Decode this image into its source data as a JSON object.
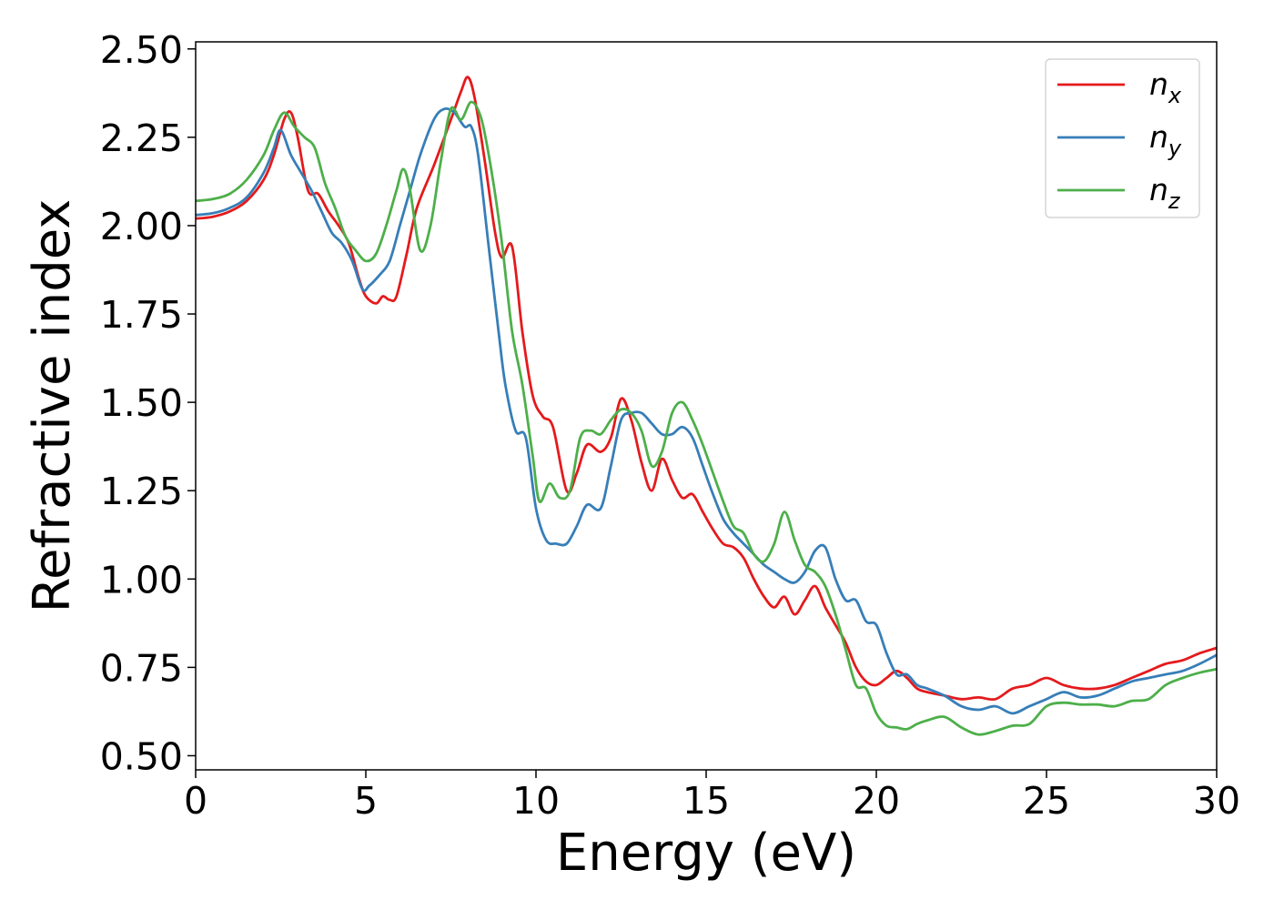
{
  "chart_data": {
    "type": "line",
    "title": "",
    "xlabel": "Energy (eV)",
    "ylabel": "Refractive index",
    "xlim": [
      0,
      30
    ],
    "ylim": [
      0.46,
      2.52
    ],
    "xticks": [
      0,
      5,
      10,
      15,
      20,
      25,
      30
    ],
    "xtick_labels": [
      "0",
      "5",
      "10",
      "15",
      "20",
      "25",
      "30"
    ],
    "yticks": [
      0.5,
      0.75,
      1.0,
      1.25,
      1.5,
      1.75,
      2.0,
      2.25,
      2.5
    ],
    "ytick_labels": [
      "0.50",
      "0.75",
      "1.00",
      "1.25",
      "1.50",
      "1.75",
      "2.00",
      "2.25",
      "2.50"
    ],
    "grid": false,
    "legend_position": "top-right",
    "series": [
      {
        "name": "n",
        "subscript": "x",
        "color": "#e41a1c",
        "x": [
          0,
          0.5,
          1,
          1.5,
          2,
          2.3,
          2.6,
          2.8,
          3,
          3.3,
          3.6,
          3.9,
          4.2,
          4.5,
          4.8,
          5.0,
          5.3,
          5.5,
          5.7,
          5.9,
          6.2,
          6.5,
          7.0,
          7.5,
          7.8,
          8.0,
          8.2,
          8.5,
          8.8,
          9.0,
          9.3,
          9.6,
          9.9,
          10.2,
          10.5,
          10.9,
          11.2,
          11.5,
          11.9,
          12.2,
          12.5,
          12.8,
          13.1,
          13.4,
          13.7,
          14.0,
          14.3,
          14.6,
          14.9,
          15.2,
          15.5,
          15.8,
          16.1,
          16.4,
          16.7,
          17.0,
          17.3,
          17.6,
          17.9,
          18.2,
          18.5,
          18.8,
          19.1,
          19.4,
          19.7,
          20.0,
          20.3,
          20.6,
          20.9,
          21.2,
          21.5,
          22.0,
          22.5,
          23.0,
          23.5,
          24.0,
          24.5,
          25.0,
          25.5,
          26.0,
          26.5,
          27.0,
          27.5,
          28.0,
          28.5,
          29.0,
          29.5,
          30.0
        ],
        "y": [
          2.02,
          2.025,
          2.04,
          2.07,
          2.13,
          2.2,
          2.3,
          2.32,
          2.25,
          2.1,
          2.09,
          2.04,
          2.0,
          1.95,
          1.85,
          1.8,
          1.78,
          1.8,
          1.79,
          1.8,
          1.92,
          2.05,
          2.17,
          2.3,
          2.38,
          2.42,
          2.36,
          2.18,
          1.98,
          1.91,
          1.94,
          1.7,
          1.52,
          1.46,
          1.43,
          1.25,
          1.3,
          1.38,
          1.36,
          1.4,
          1.51,
          1.45,
          1.33,
          1.25,
          1.34,
          1.28,
          1.23,
          1.24,
          1.19,
          1.14,
          1.1,
          1.09,
          1.06,
          1.0,
          0.95,
          0.92,
          0.95,
          0.9,
          0.94,
          0.98,
          0.92,
          0.87,
          0.82,
          0.75,
          0.71,
          0.7,
          0.72,
          0.74,
          0.72,
          0.69,
          0.68,
          0.67,
          0.66,
          0.665,
          0.66,
          0.69,
          0.7,
          0.72,
          0.7,
          0.69,
          0.69,
          0.7,
          0.72,
          0.74,
          0.76,
          0.77,
          0.79,
          0.805
        ]
      },
      {
        "name": "n",
        "subscript": "y",
        "color": "#377eb8",
        "x": [
          0,
          0.5,
          1,
          1.5,
          2,
          2.3,
          2.5,
          2.8,
          3.1,
          3.4,
          3.7,
          4.0,
          4.3,
          4.6,
          4.9,
          5.1,
          5.4,
          5.7,
          6.0,
          6.3,
          6.6,
          7.0,
          7.3,
          7.6,
          7.9,
          8.1,
          8.3,
          8.6,
          8.9,
          9.1,
          9.4,
          9.7,
          10.0,
          10.3,
          10.6,
          10.9,
          11.2,
          11.5,
          11.9,
          12.2,
          12.5,
          12.8,
          13.1,
          13.4,
          13.7,
          14.0,
          14.3,
          14.6,
          14.9,
          15.2,
          15.5,
          15.8,
          16.1,
          16.4,
          16.7,
          17.0,
          17.3,
          17.6,
          17.9,
          18.2,
          18.5,
          18.8,
          19.1,
          19.4,
          19.7,
          20.0,
          20.3,
          20.6,
          20.9,
          21.2,
          21.5,
          22.0,
          22.5,
          23.0,
          23.5,
          24.0,
          24.5,
          25.0,
          25.5,
          26.0,
          26.5,
          27.0,
          27.5,
          28.0,
          28.5,
          29.0,
          29.5,
          30.0
        ],
        "y": [
          2.03,
          2.035,
          2.05,
          2.08,
          2.15,
          2.22,
          2.27,
          2.2,
          2.15,
          2.1,
          2.04,
          1.98,
          1.95,
          1.9,
          1.82,
          1.83,
          1.86,
          1.9,
          2.0,
          2.1,
          2.2,
          2.3,
          2.33,
          2.32,
          2.28,
          2.28,
          2.2,
          1.95,
          1.7,
          1.55,
          1.42,
          1.4,
          1.2,
          1.11,
          1.1,
          1.1,
          1.15,
          1.21,
          1.2,
          1.32,
          1.45,
          1.47,
          1.47,
          1.44,
          1.41,
          1.41,
          1.43,
          1.4,
          1.32,
          1.24,
          1.17,
          1.13,
          1.1,
          1.07,
          1.04,
          1.02,
          1.0,
          0.99,
          1.02,
          1.08,
          1.09,
          1.0,
          0.94,
          0.94,
          0.88,
          0.87,
          0.79,
          0.73,
          0.73,
          0.7,
          0.69,
          0.67,
          0.64,
          0.63,
          0.64,
          0.62,
          0.64,
          0.66,
          0.68,
          0.665,
          0.67,
          0.69,
          0.71,
          0.72,
          0.73,
          0.74,
          0.76,
          0.785
        ]
      },
      {
        "name": "n",
        "subscript": "z",
        "color": "#4daf4a",
        "x": [
          0,
          0.5,
          1,
          1.5,
          2,
          2.3,
          2.6,
          2.9,
          3.2,
          3.5,
          3.8,
          4.1,
          4.4,
          4.7,
          5.0,
          5.3,
          5.6,
          5.9,
          6.1,
          6.3,
          6.6,
          6.9,
          7.2,
          7.5,
          7.8,
          8.1,
          8.4,
          8.7,
          9.0,
          9.3,
          9.6,
          9.9,
          10.1,
          10.4,
          10.7,
          11.0,
          11.3,
          11.6,
          11.9,
          12.2,
          12.5,
          12.8,
          13.1,
          13.4,
          13.7,
          14.0,
          14.3,
          14.6,
          14.9,
          15.2,
          15.5,
          15.8,
          16.1,
          16.4,
          16.7,
          17.0,
          17.3,
          17.6,
          17.9,
          18.2,
          18.5,
          18.8,
          19.1,
          19.4,
          19.7,
          20.0,
          20.3,
          20.6,
          20.9,
          21.2,
          21.5,
          22.0,
          22.5,
          23.0,
          23.5,
          24.0,
          24.5,
          25.0,
          25.5,
          26.0,
          26.5,
          27.0,
          27.5,
          28.0,
          28.5,
          29.0,
          29.5,
          30.0
        ],
        "y": [
          2.07,
          2.075,
          2.09,
          2.13,
          2.2,
          2.27,
          2.32,
          2.28,
          2.25,
          2.22,
          2.12,
          2.05,
          1.97,
          1.93,
          1.9,
          1.92,
          2.0,
          2.1,
          2.16,
          2.1,
          1.93,
          2.0,
          2.18,
          2.33,
          2.3,
          2.35,
          2.3,
          2.15,
          1.95,
          1.7,
          1.55,
          1.35,
          1.22,
          1.27,
          1.23,
          1.25,
          1.4,
          1.42,
          1.41,
          1.45,
          1.48,
          1.47,
          1.42,
          1.32,
          1.36,
          1.47,
          1.5,
          1.45,
          1.38,
          1.3,
          1.22,
          1.15,
          1.13,
          1.07,
          1.05,
          1.1,
          1.19,
          1.11,
          1.04,
          1.02,
          0.98,
          0.9,
          0.8,
          0.7,
          0.69,
          0.62,
          0.585,
          0.58,
          0.575,
          0.59,
          0.6,
          0.61,
          0.58,
          0.56,
          0.57,
          0.585,
          0.59,
          0.64,
          0.65,
          0.645,
          0.645,
          0.64,
          0.655,
          0.66,
          0.7,
          0.72,
          0.735,
          0.745
        ]
      }
    ]
  }
}
